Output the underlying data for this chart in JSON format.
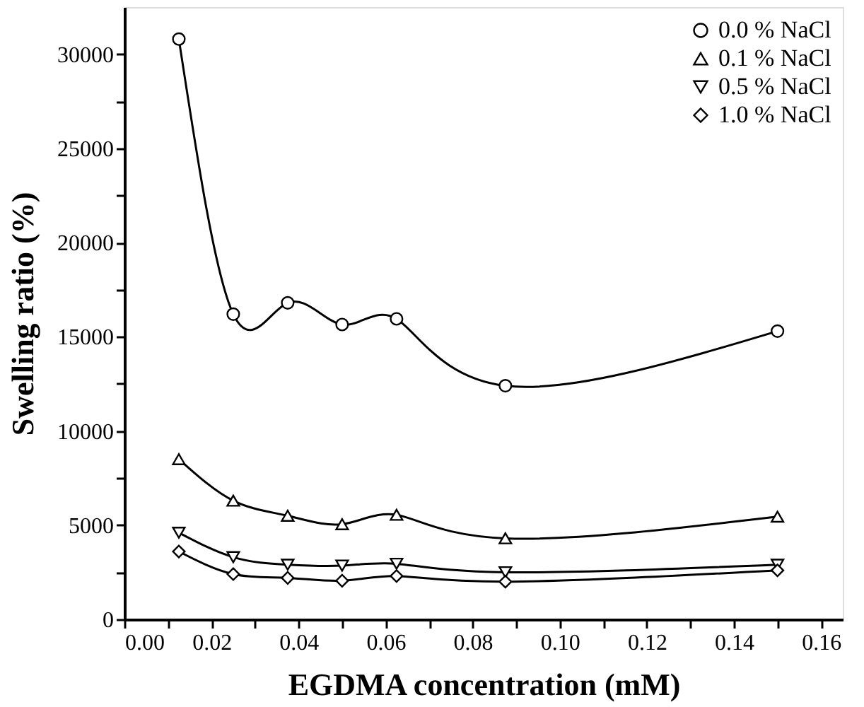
{
  "chart_data": {
    "type": "line",
    "xlabel": "EGDMA concentration (mM)",
    "ylabel": "Swelling ratio (%)",
    "x": [
      0.0125,
      0.025,
      0.0375,
      0.05,
      0.0625,
      0.0875,
      0.15
    ],
    "series": [
      {
        "name": "0.0 % NaCl",
        "color": "#000000",
        "marker": "circle",
        "values": [
          30800,
          16200,
          16800,
          15650,
          15950,
          12400,
          15300
        ]
      },
      {
        "name": "0.1 % NaCl",
        "color": "#000000",
        "marker": "triangle",
        "values": [
          8500,
          6300,
          5500,
          5050,
          5550,
          4300,
          5450
        ]
      },
      {
        "name": "0.5 % NaCl",
        "color": "#000000",
        "marker": "triangle-down",
        "values": [
          4600,
          3300,
          2900,
          2850,
          2950,
          2500,
          2900
        ]
      },
      {
        "name": "1.0 % NaCl",
        "color": "#000000",
        "marker": "diamond",
        "values": [
          3600,
          2400,
          2200,
          2050,
          2300,
          2000,
          2600
        ]
      }
    ],
    "xlim": [
      0,
      0.165
    ],
    "xticks": [
      {
        "value": 0,
        "label": "0.00"
      },
      {
        "value": 0.01,
        "label": null
      },
      {
        "value": 0.02,
        "label": "0.02"
      },
      {
        "value": 0.03,
        "label": null
      },
      {
        "value": 0.04,
        "label": "0.04"
      },
      {
        "value": 0.05,
        "label": null
      },
      {
        "value": 0.06,
        "label": "0.06"
      },
      {
        "value": 0.07,
        "label": null
      },
      {
        "value": 0.08,
        "label": "0.08"
      },
      {
        "value": 0.09,
        "label": null
      },
      {
        "value": 0.1,
        "label": "0.10"
      },
      {
        "value": 0.11,
        "label": null
      },
      {
        "value": 0.12,
        "label": "0.12"
      },
      {
        "value": 0.13,
        "label": null
      },
      {
        "value": 0.14,
        "label": "0.14"
      },
      {
        "value": 0.15,
        "label": null
      },
      {
        "value": 0.16,
        "label": "0.16"
      }
    ],
    "ylim": [
      0,
      32500
    ],
    "yticks": [
      0,
      {
        "value": 2500,
        "label": null
      },
      5000,
      {
        "value": 7500,
        "label": null
      },
      10000,
      {
        "value": 12500,
        "label": null
      },
      15000,
      {
        "value": 17500,
        "label": null
      },
      20000,
      {
        "value": 22500,
        "label": null
      },
      25000,
      {
        "value": 27500,
        "label": null
      },
      30000
    ],
    "grid": false,
    "legend": "top right",
    "line_style": "solid"
  }
}
